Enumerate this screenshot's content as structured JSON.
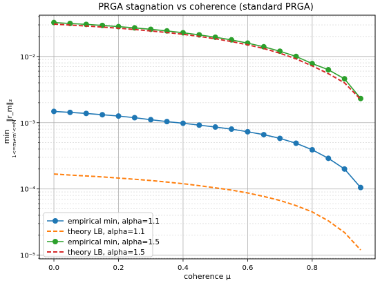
{
  "chart_data": {
    "type": "line",
    "title": "PRGA stagnation vs coherence (standard PRGA)",
    "xlabel": "coherence μ",
    "ylabel_main": "min",
    "ylabel_sub": "1<=m≠m'<=M",
    "ylabel_norm": "‖r_m‖₂",
    "yscale": "log",
    "xlim": [
      -0.045,
      0.995
    ],
    "ylim": [
      8.8e-06,
      0.042
    ],
    "grid": true,
    "legend_position": "lower-left",
    "x_ticks": [
      {
        "value": 0.0,
        "label": "0.0"
      },
      {
        "value": 0.2,
        "label": "0.2"
      },
      {
        "value": 0.4,
        "label": "0.4"
      },
      {
        "value": 0.6,
        "label": "0.6"
      },
      {
        "value": 0.8,
        "label": "0.8"
      }
    ],
    "y_ticks": [
      {
        "value": 1e-05,
        "label": "10⁻⁵"
      },
      {
        "value": 0.0001,
        "label": "10⁻⁴"
      },
      {
        "value": 0.001,
        "label": "10⁻³"
      },
      {
        "value": 0.01,
        "label": "10⁻²"
      }
    ],
    "x": [
      0.0,
      0.05,
      0.1,
      0.15,
      0.2,
      0.25,
      0.3,
      0.35,
      0.4,
      0.45,
      0.5,
      0.55,
      0.6,
      0.65,
      0.7,
      0.75,
      0.8,
      0.85,
      0.9,
      0.95
    ],
    "series": [
      {
        "name": "empirical min, alpha=1.1",
        "color": "#1f77b4",
        "style": "solid-marker",
        "values": [
          0.00148,
          0.00143,
          0.00138,
          0.00132,
          0.00126,
          0.00119,
          0.00111,
          0.00104,
          0.00098,
          0.00092,
          0.00086,
          0.0008,
          0.00073,
          0.00066,
          0.00058,
          0.00049,
          0.00039,
          0.00029,
          0.0002,
          0.000105
        ]
      },
      {
        "name": "theory LB, alpha=1.1",
        "color": "#ff7f0e",
        "style": "dashed",
        "values": [
          0.000168,
          0.000162,
          0.000157,
          0.000152,
          0.000146,
          0.00014,
          0.000134,
          0.000127,
          0.00012,
          0.000112,
          0.000104,
          9.6e-05,
          8.7e-05,
          7.7e-05,
          6.7e-05,
          5.6e-05,
          4.5e-05,
          3.3e-05,
          2.2e-05,
          1.2e-05
        ]
      },
      {
        "name": "empirical min, alpha=1.5",
        "color": "#2ca02c",
        "style": "solid-marker",
        "values": [
          0.0325,
          0.0315,
          0.0305,
          0.0294,
          0.0282,
          0.027,
          0.0257,
          0.0243,
          0.0228,
          0.0212,
          0.0195,
          0.0178,
          0.0159,
          0.014,
          0.012,
          0.01,
          0.0078,
          0.0063,
          0.0046,
          0.00232
        ]
      },
      {
        "name": "theory LB, alpha=1.5",
        "color": "#d62728",
        "style": "dashed",
        "values": [
          0.0308,
          0.0298,
          0.0288,
          0.0278,
          0.0267,
          0.0255,
          0.0243,
          0.023,
          0.0216,
          0.0201,
          0.0185,
          0.0168,
          0.015,
          0.0132,
          0.0112,
          0.0092,
          0.0072,
          0.0055,
          0.004,
          0.00225
        ]
      }
    ]
  }
}
